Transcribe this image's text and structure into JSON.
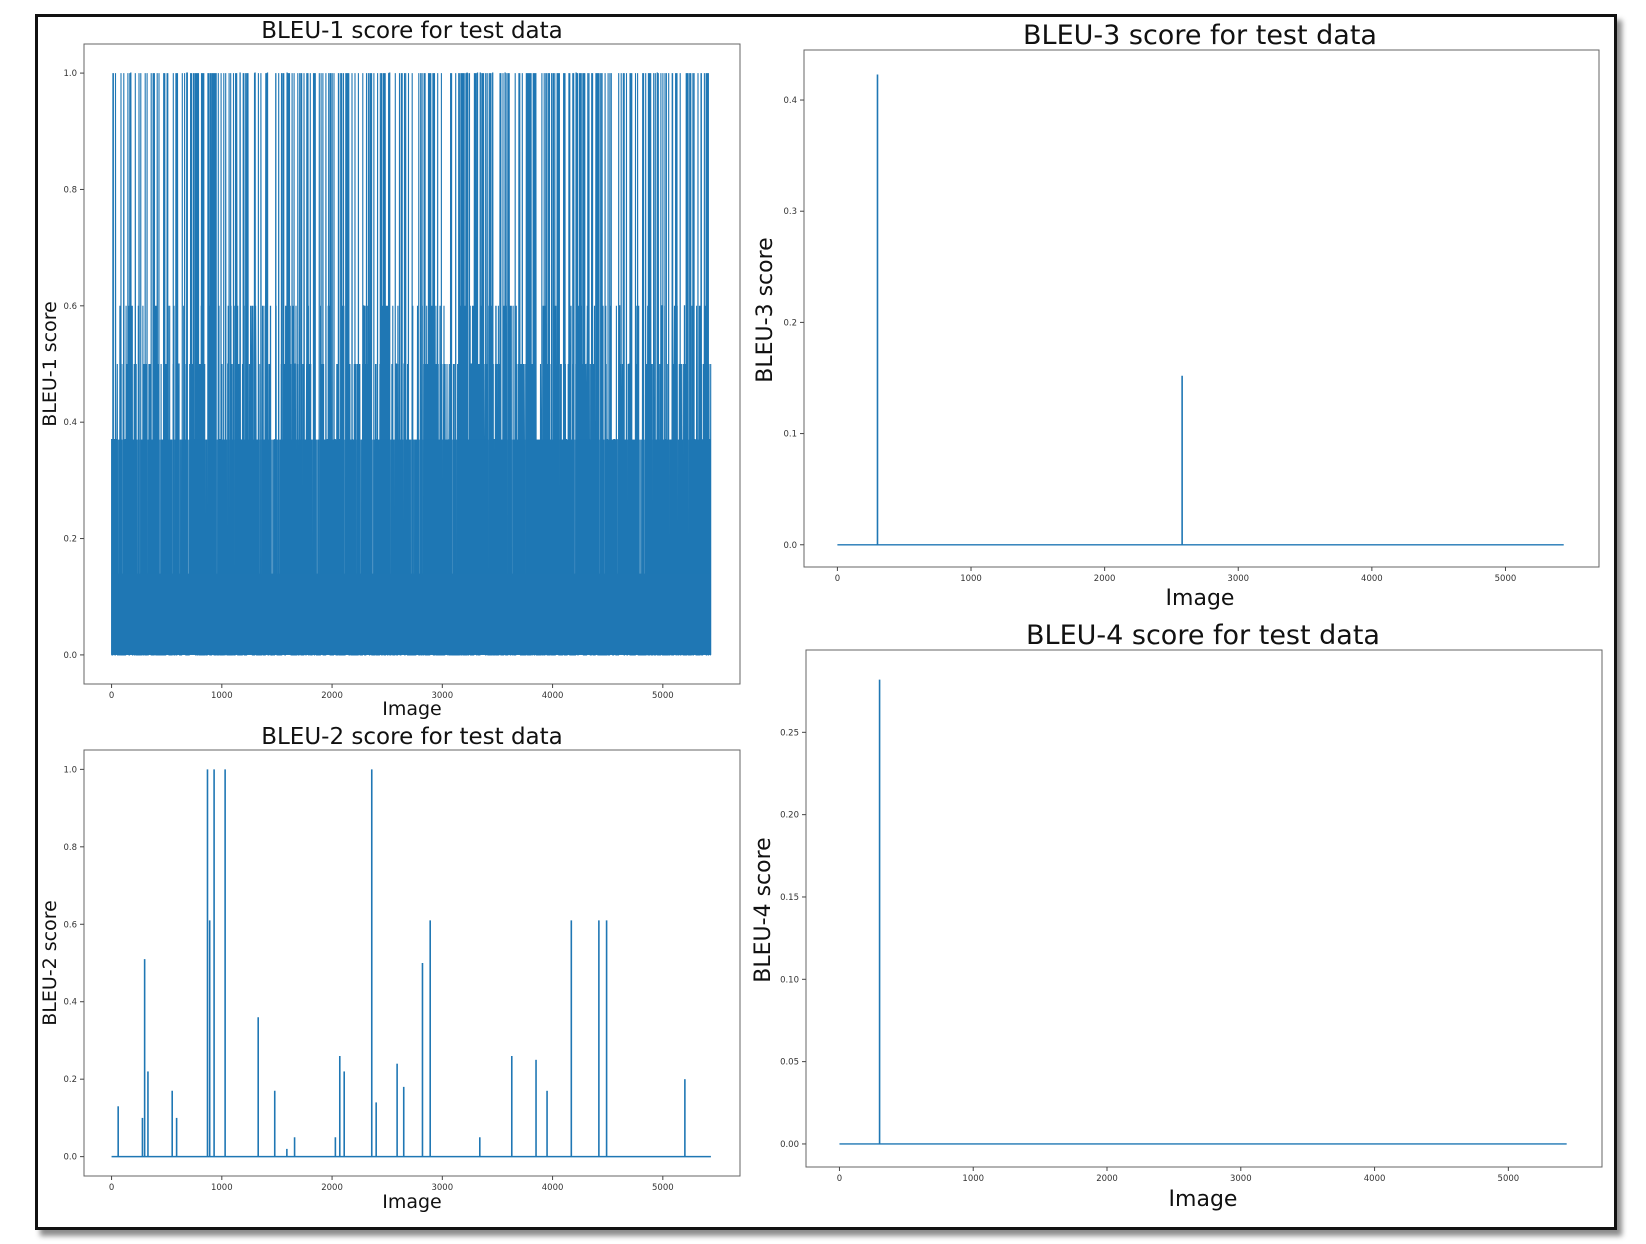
{
  "figure": {
    "accent": "#1f77b4",
    "frame_color": "#111111"
  },
  "chart_data": [
    {
      "id": "bleu1",
      "type": "line",
      "title": "BLEU-1 score for test data",
      "xlabel": "Image",
      "ylabel": "BLEU-1 score",
      "xlim": [
        -250,
        5700
      ],
      "ylim": [
        -0.05,
        1.05
      ],
      "xticks": [
        0,
        1000,
        2000,
        3000,
        4000,
        5000
      ],
      "yticks": [
        0.0,
        0.2,
        0.4,
        0.6,
        0.8,
        1.0
      ],
      "ytick_labels": [
        "0.0",
        "0.2",
        "0.4",
        "0.6",
        "0.8",
        "1.0"
      ],
      "grid": false,
      "series": [
        {
          "color": "#1f77b4",
          "n_points": 5437,
          "dense": true,
          "value_levels": [
            0.0,
            0.14,
            0.37,
            0.5,
            0.6,
            1.0
          ],
          "note_values_in_range": "values oscillate between 0.0 and 1.0; dense baseline band at 0.0–0.14, heavy band up to ~0.37, frequent spikes to 0.5, 0.6 and 1.0"
        }
      ]
    },
    {
      "id": "bleu2",
      "type": "line",
      "title": "BLEU-2 score for test data",
      "xlabel": "Image",
      "ylabel": "BLEU-2 score",
      "xlim": [
        -250,
        5700
      ],
      "ylim": [
        -0.05,
        1.05
      ],
      "xticks": [
        0,
        1000,
        2000,
        3000,
        4000,
        5000
      ],
      "yticks": [
        0.0,
        0.2,
        0.4,
        0.6,
        0.8,
        1.0
      ],
      "ytick_labels": [
        "0.0",
        "0.2",
        "0.4",
        "0.6",
        "0.8",
        "1.0"
      ],
      "grid": false,
      "series": [
        {
          "color": "#1f77b4",
          "n_points": 5437,
          "baseline": 0.0,
          "spikes": [
            {
              "x": 60,
              "y": 0.13
            },
            {
              "x": 280,
              "y": 0.1
            },
            {
              "x": 300,
              "y": 0.51
            },
            {
              "x": 330,
              "y": 0.22
            },
            {
              "x": 550,
              "y": 0.17
            },
            {
              "x": 590,
              "y": 0.1
            },
            {
              "x": 870,
              "y": 1.0
            },
            {
              "x": 890,
              "y": 0.61
            },
            {
              "x": 930,
              "y": 1.0
            },
            {
              "x": 1030,
              "y": 1.0
            },
            {
              "x": 1330,
              "y": 0.36
            },
            {
              "x": 1480,
              "y": 0.17
            },
            {
              "x": 1590,
              "y": 0.02
            },
            {
              "x": 1660,
              "y": 0.05
            },
            {
              "x": 2030,
              "y": 0.05
            },
            {
              "x": 2070,
              "y": 0.26
            },
            {
              "x": 2110,
              "y": 0.22
            },
            {
              "x": 2360,
              "y": 1.0
            },
            {
              "x": 2400,
              "y": 0.14
            },
            {
              "x": 2590,
              "y": 0.24
            },
            {
              "x": 2650,
              "y": 0.18
            },
            {
              "x": 2820,
              "y": 0.5
            },
            {
              "x": 2890,
              "y": 0.61
            },
            {
              "x": 3340,
              "y": 0.05
            },
            {
              "x": 3630,
              "y": 0.26
            },
            {
              "x": 3850,
              "y": 0.25
            },
            {
              "x": 3950,
              "y": 0.17
            },
            {
              "x": 4170,
              "y": 0.61
            },
            {
              "x": 4420,
              "y": 0.61
            },
            {
              "x": 4490,
              "y": 0.61
            },
            {
              "x": 5200,
              "y": 0.2
            }
          ]
        }
      ]
    },
    {
      "id": "bleu3",
      "type": "line",
      "title": "BLEU-3 score for test data",
      "xlabel": "Image",
      "ylabel": "BLEU-3 score",
      "xlim": [
        -250,
        5700
      ],
      "ylim": [
        -0.02,
        0.445
      ],
      "xticks": [
        0,
        1000,
        2000,
        3000,
        4000,
        5000
      ],
      "yticks": [
        0.0,
        0.1,
        0.2,
        0.3,
        0.4
      ],
      "ytick_labels": [
        "0.0",
        "0.1",
        "0.2",
        "0.3",
        "0.4"
      ],
      "grid": false,
      "series": [
        {
          "color": "#1f77b4",
          "n_points": 5437,
          "baseline": 0.0,
          "spikes": [
            {
              "x": 300,
              "y": 0.423
            },
            {
              "x": 2580,
              "y": 0.152
            }
          ]
        }
      ]
    },
    {
      "id": "bleu4",
      "type": "line",
      "title": "BLEU-4 score for test data",
      "xlabel": "Image",
      "ylabel": "BLEU-4 score",
      "xlim": [
        -250,
        5700
      ],
      "ylim": [
        -0.014,
        0.3
      ],
      "xticks": [
        0,
        1000,
        2000,
        3000,
        4000,
        5000
      ],
      "yticks": [
        0.0,
        0.05,
        0.1,
        0.15,
        0.2,
        0.25
      ],
      "ytick_labels": [
        "0.00",
        "0.05",
        "0.10",
        "0.15",
        "0.20",
        "0.25"
      ],
      "grid": false,
      "series": [
        {
          "color": "#1f77b4",
          "n_points": 5437,
          "baseline": 0.0,
          "spikes": [
            {
              "x": 300,
              "y": 0.282
            }
          ]
        }
      ]
    }
  ]
}
